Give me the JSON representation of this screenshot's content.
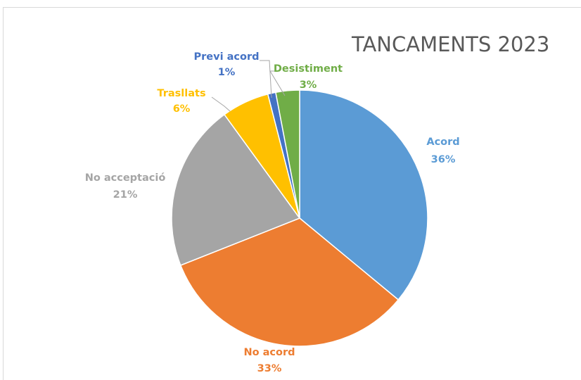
{
  "chart_data": {
    "type": "pie",
    "title": "TANCAMENTS 2023",
    "categories": [
      "Acord",
      "No acord",
      "No acceptació",
      "Trasllats",
      "Previ acord",
      "Desistiment"
    ],
    "values": [
      36,
      33,
      21,
      6,
      1,
      3
    ],
    "value_labels": [
      "36%",
      "33%",
      "21%",
      "6%",
      "1%",
      "3%"
    ],
    "colors": [
      "#5b9bd5",
      "#ed7d31",
      "#a5a5a5",
      "#ffc000",
      "#4472c4",
      "#70ad47"
    ],
    "legend": "none",
    "start_angle": "12 o'clock, clockwise"
  }
}
